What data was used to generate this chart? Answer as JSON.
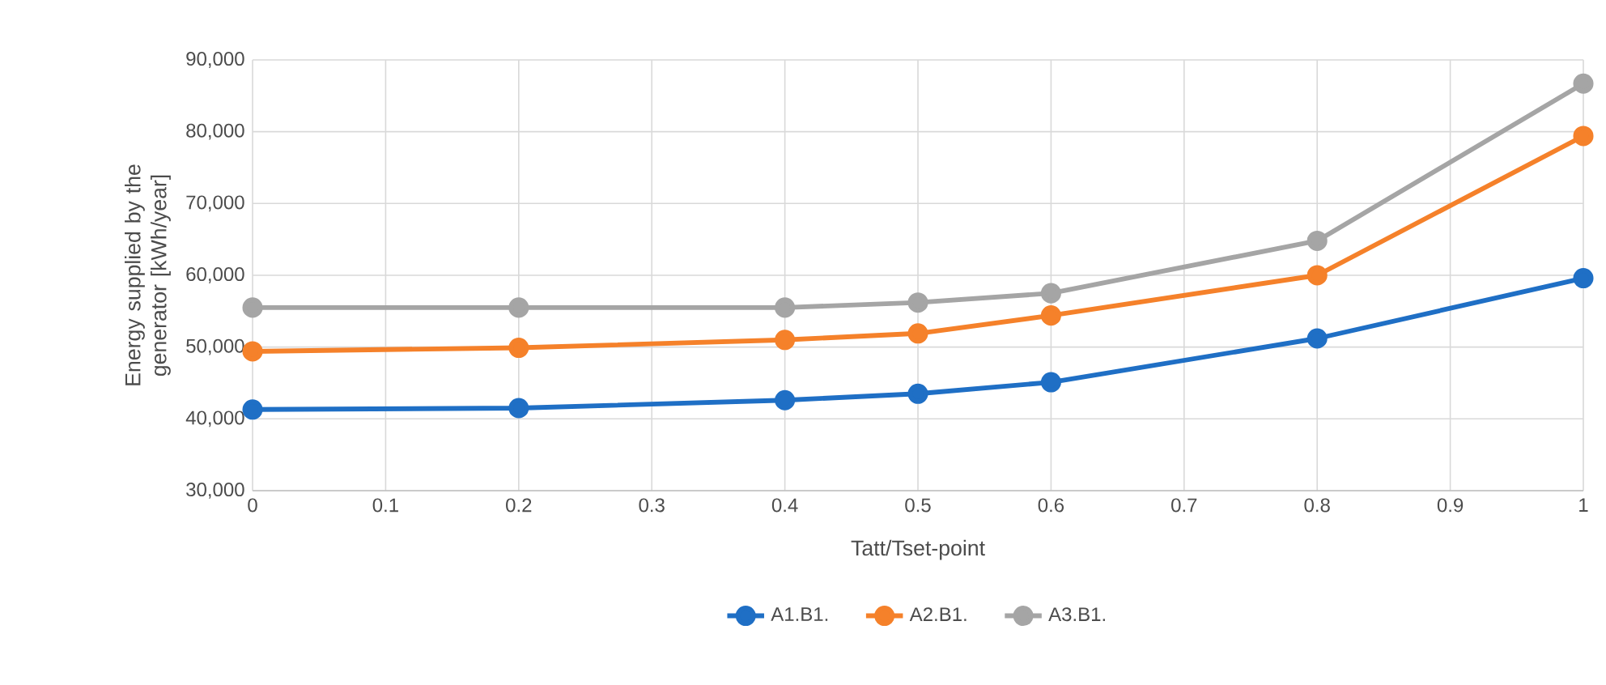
{
  "chart_data": {
    "type": "line",
    "xlabel": "Tatt/Tset-point",
    "ylabel": "Energy supplied by the generator [kWh/year]",
    "x": [
      0,
      0.2,
      0.4,
      0.5,
      0.6,
      0.8,
      1
    ],
    "series": [
      {
        "name": "A1.B1.",
        "color": "#1f6fc5",
        "values": [
          41300,
          41500,
          42600,
          43500,
          45100,
          51200,
          59600
        ]
      },
      {
        "name": "A2.B1.",
        "color": "#f5812a",
        "values": [
          49400,
          49900,
          51000,
          51900,
          54400,
          60000,
          79400
        ]
      },
      {
        "name": "A3.B1.",
        "color": "#a5a5a5",
        "values": [
          55500,
          55500,
          55500,
          56200,
          57500,
          64800,
          86700
        ]
      }
    ],
    "xlim": [
      0,
      1
    ],
    "xticks": [
      0,
      0.1,
      0.2,
      0.3,
      0.4,
      0.5,
      0.6,
      0.7,
      0.8,
      0.9,
      1
    ],
    "ylim": [
      30000,
      90000
    ],
    "yticks": [
      {
        "value": 30000,
        "label": "30,000"
      },
      {
        "value": 40000,
        "label": "40,000"
      },
      {
        "value": 50000,
        "label": "50,000"
      },
      {
        "value": 60000,
        "label": "60,000"
      },
      {
        "value": 70000,
        "label": "70,000"
      },
      {
        "value": 80000,
        "label": "80,000"
      },
      {
        "value": 90000,
        "label": "90,000"
      }
    ],
    "grid": true,
    "legend": "bottom",
    "marker": "circle",
    "line_style": "solid"
  }
}
